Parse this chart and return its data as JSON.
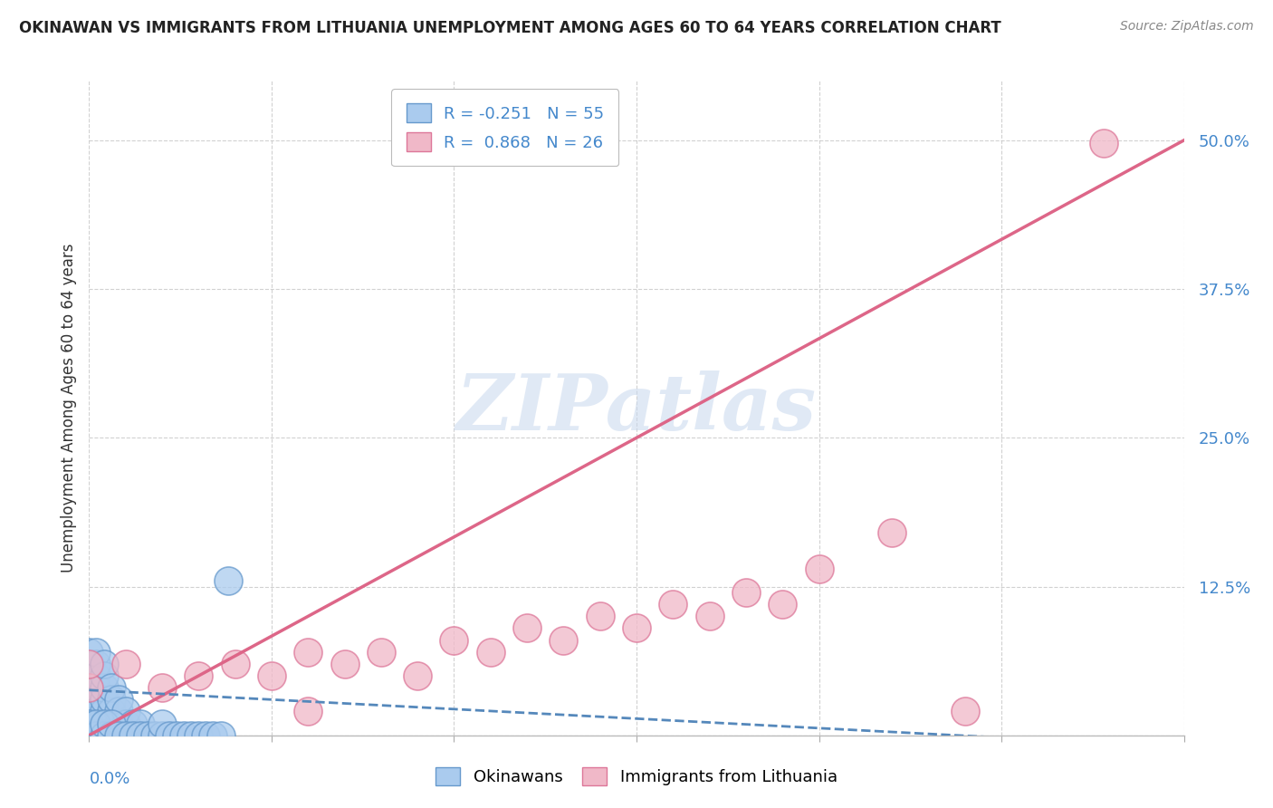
{
  "title": "OKINAWAN VS IMMIGRANTS FROM LITHUANIA UNEMPLOYMENT AMONG AGES 60 TO 64 YEARS CORRELATION CHART",
  "source": "Source: ZipAtlas.com",
  "xlabel_bottom_left": "0.0%",
  "ylabel": "Unemployment Among Ages 60 to 64 years",
  "xlim": [
    0.0,
    0.15
  ],
  "ylim": [
    0.0,
    0.55
  ],
  "ytick_vals": [
    0.0,
    0.125,
    0.25,
    0.375,
    0.5
  ],
  "ytick_labels": [
    "",
    "12.5%",
    "25.0%",
    "37.5%",
    "50.0%"
  ],
  "okinawan_color": "#aacbee",
  "okinawan_edge": "#6699cc",
  "okinawan_line_color": "#5588bb",
  "lithuania_color": "#f0b8c8",
  "lithuania_edge": "#dd7799",
  "lithuania_line_color": "#dd6688",
  "okinawan_R": -0.251,
  "okinawan_N": 55,
  "lithuania_R": 0.868,
  "lithuania_N": 26,
  "watermark": "ZIPatlas",
  "legend_label_okinawan": "Okinawans",
  "legend_label_lithuania": "Immigrants from Lithuania",
  "ok_x": [
    0.0,
    0.0,
    0.0,
    0.0,
    0.0,
    0.0,
    0.001,
    0.001,
    0.001,
    0.001,
    0.001,
    0.001,
    0.001,
    0.002,
    0.002,
    0.002,
    0.002,
    0.002,
    0.002,
    0.003,
    0.003,
    0.003,
    0.003,
    0.004,
    0.004,
    0.004,
    0.005,
    0.005,
    0.006,
    0.007,
    0.0,
    0.0,
    0.001,
    0.001,
    0.002,
    0.002,
    0.003,
    0.003,
    0.004,
    0.005,
    0.006,
    0.007,
    0.008,
    0.009,
    0.01,
    0.01,
    0.011,
    0.012,
    0.013,
    0.014,
    0.015,
    0.016,
    0.017,
    0.018,
    0.019
  ],
  "ok_y": [
    0.02,
    0.03,
    0.04,
    0.05,
    0.06,
    0.07,
    0.01,
    0.02,
    0.03,
    0.04,
    0.05,
    0.06,
    0.07,
    0.01,
    0.02,
    0.03,
    0.04,
    0.05,
    0.06,
    0.01,
    0.02,
    0.03,
    0.04,
    0.01,
    0.02,
    0.03,
    0.01,
    0.02,
    0.01,
    0.01,
    0.0,
    0.01,
    0.0,
    0.01,
    0.0,
    0.01,
    0.0,
    0.01,
    0.0,
    0.0,
    0.0,
    0.0,
    0.0,
    0.0,
    0.0,
    0.01,
    0.0,
    0.0,
    0.0,
    0.0,
    0.0,
    0.0,
    0.0,
    0.0,
    0.13
  ],
  "lt_x": [
    0.0,
    0.0,
    0.005,
    0.01,
    0.015,
    0.02,
    0.025,
    0.03,
    0.03,
    0.035,
    0.04,
    0.045,
    0.05,
    0.055,
    0.06,
    0.065,
    0.07,
    0.075,
    0.08,
    0.085,
    0.09,
    0.095,
    0.1,
    0.11,
    0.12,
    0.139
  ],
  "lt_y": [
    0.04,
    0.06,
    0.06,
    0.04,
    0.05,
    0.06,
    0.05,
    0.07,
    0.02,
    0.06,
    0.07,
    0.05,
    0.08,
    0.07,
    0.09,
    0.08,
    0.1,
    0.09,
    0.11,
    0.1,
    0.12,
    0.11,
    0.14,
    0.17,
    0.02,
    0.498
  ],
  "lt_line_x0": 0.0,
  "lt_line_y0": 0.0,
  "lt_line_x1": 0.15,
  "lt_line_y1": 0.5,
  "ok_line_x0": 0.0,
  "ok_line_y0": 0.038,
  "ok_line_x1": 0.15,
  "ok_line_y1": -0.01
}
